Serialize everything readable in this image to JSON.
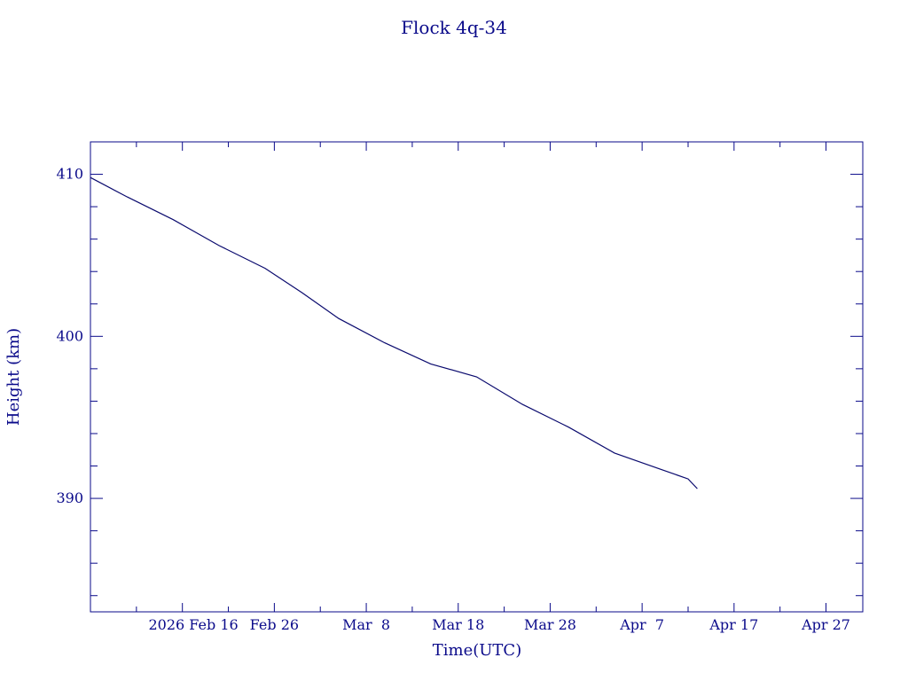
{
  "chart_data": {
    "type": "line",
    "title": "Flock 4q-34",
    "xlabel": "Time(UTC)",
    "ylabel": "Height (km)",
    "x_start": "2026-02-06",
    "xlim": [
      "2026-02-06",
      "2026-05-01"
    ],
    "ylim": [
      383,
      412
    ],
    "y_ticks": [
      390,
      400,
      410
    ],
    "x_ticks": [
      {
        "date": "2026-02-16",
        "label": "2026 Feb 16"
      },
      {
        "date": "2026-02-26",
        "label": "Feb 26"
      },
      {
        "date": "2026-03-08",
        "label": "Mar  8"
      },
      {
        "date": "2026-03-18",
        "label": "Mar 18"
      },
      {
        "date": "2026-03-28",
        "label": "Mar 28"
      },
      {
        "date": "2026-04-07",
        "label": "Apr  7"
      },
      {
        "date": "2026-04-17",
        "label": "Apr 17"
      },
      {
        "date": "2026-04-27",
        "label": "Apr 27"
      }
    ],
    "grid": false,
    "line_color": "#0a0a6e",
    "axis_color": "#0a0a8a",
    "series": [
      {
        "x": [
          "2026-02-06",
          "2026-02-10",
          "2026-02-15",
          "2026-02-20",
          "2026-02-25",
          "2026-03-01",
          "2026-03-05",
          "2026-03-10",
          "2026-03-15",
          "2026-03-20",
          "2026-03-25",
          "2026-03-30",
          "2026-04-04",
          "2026-04-09",
          "2026-04-12",
          "2026-04-13"
        ],
        "y": [
          409.8,
          408.6,
          407.2,
          405.6,
          404.2,
          402.7,
          401.1,
          399.6,
          398.3,
          397.5,
          395.8,
          394.4,
          392.8,
          391.8,
          391.2,
          390.6
        ]
      }
    ]
  }
}
